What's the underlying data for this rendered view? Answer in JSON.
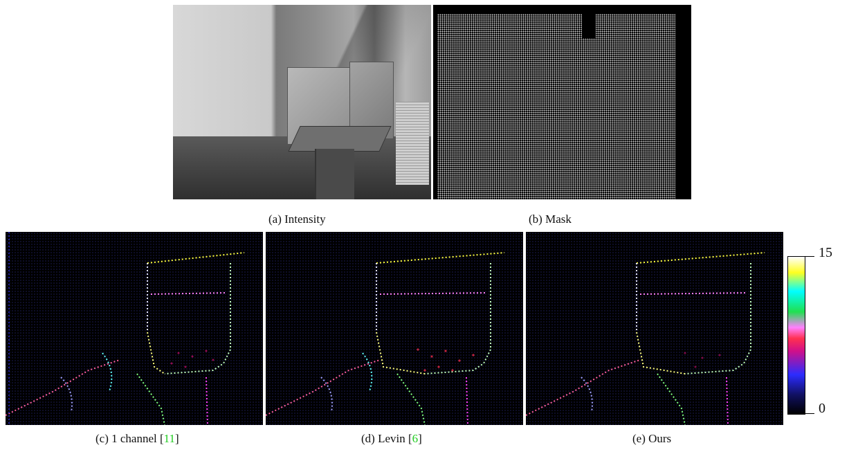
{
  "captions": {
    "a": "(a) Intensity",
    "b": "(b) Mask",
    "c_prefix": "(c) 1 channel [",
    "c_ref": "11",
    "d_prefix": "(d) Levin [",
    "d_ref": "6",
    "e": "(e) Ours",
    "bracket_close": "]"
  },
  "colorbar": {
    "max_label": "15",
    "min_label": "0",
    "colors": [
      "#000000",
      "#2c2cff",
      "#d0108a",
      "#ff3050",
      "#20e050",
      "#00ffff",
      "#ffff20",
      "#ffffff"
    ]
  },
  "colors": {
    "reference": "#22cc22"
  }
}
